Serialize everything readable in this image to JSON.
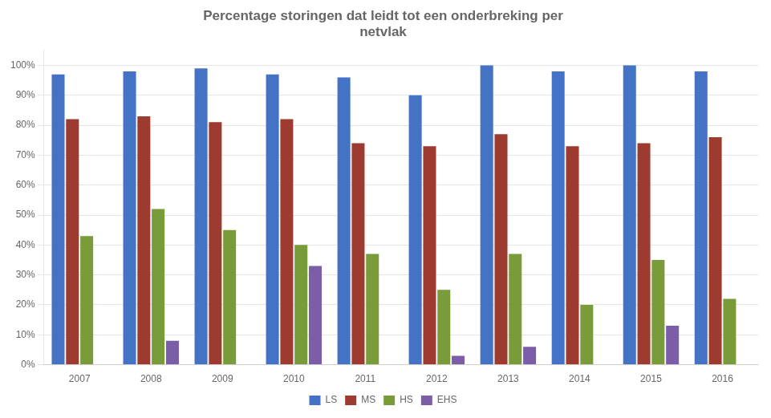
{
  "chart_data": {
    "type": "bar",
    "title": "Percentage storingen dat leidt tot een onderbreking per\nnetvlak",
    "categories": [
      "2007",
      "2008",
      "2009",
      "2010",
      "2011",
      "2012",
      "2013",
      "2014",
      "2015",
      "2016"
    ],
    "series": [
      {
        "name": "LS",
        "color": "#4472C4",
        "values": [
          0.97,
          0.98,
          0.99,
          0.97,
          0.96,
          0.9,
          1.0,
          0.98,
          1.0,
          0.98
        ]
      },
      {
        "name": "MS",
        "color": "#9E3B31",
        "values": [
          0.82,
          0.83,
          0.81,
          0.82,
          0.74,
          0.73,
          0.77,
          0.73,
          0.74,
          0.76
        ]
      },
      {
        "name": "HS",
        "color": "#7A9B3A",
        "values": [
          0.43,
          0.52,
          0.45,
          0.4,
          0.37,
          0.25,
          0.37,
          0.2,
          0.35,
          0.22
        ]
      },
      {
        "name": "EHS",
        "color": "#7B5EA7",
        "values": [
          0.0,
          0.08,
          0.0,
          0.33,
          0.0,
          0.03,
          0.06,
          0.0,
          0.13,
          0.0
        ]
      }
    ],
    "ylim": [
      0,
      1.05
    ],
    "yticks": [
      {
        "value": 0.0,
        "label": "0%"
      },
      {
        "value": 0.1,
        "label": "10%"
      },
      {
        "value": 0.2,
        "label": "20%"
      },
      {
        "value": 0.3,
        "label": "30%"
      },
      {
        "value": 0.4,
        "label": "40%"
      },
      {
        "value": 0.5,
        "label": "50%"
      },
      {
        "value": 0.6,
        "label": "60%"
      },
      {
        "value": 0.7,
        "label": "70%"
      },
      {
        "value": 0.8,
        "label": "80%"
      },
      {
        "value": 0.9,
        "label": "90%"
      },
      {
        "value": 1.0,
        "label": "100%"
      }
    ],
    "grid": true,
    "legend": "bottom"
  }
}
